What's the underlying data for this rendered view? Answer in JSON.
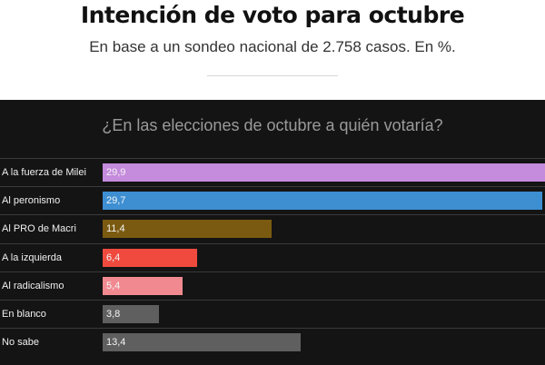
{
  "header": {
    "title": "Intención de voto para octubre",
    "subtitle": "En base a un sondeo nacional de 2.758 casos. En %."
  },
  "chart_data": {
    "type": "bar",
    "orientation": "horizontal",
    "title": "¿En las elecciones de octubre a quién votaría?",
    "categories": [
      "A la fuerza de Milei",
      "Al peronismo",
      "Al PRO de Macri",
      "A la izquierda",
      "Al radicalismo",
      "En blanco",
      "No sabe"
    ],
    "values": [
      29.9,
      29.7,
      11.4,
      6.4,
      5.4,
      3.8,
      13.4
    ],
    "value_labels": [
      "29,9",
      "29,7",
      "11,4",
      "6,4",
      "5,4",
      "3,8",
      "13,4"
    ],
    "colors": [
      "#c58bdc",
      "#3d8fd2",
      "#7a5a10",
      "#f04a3f",
      "#f08a90",
      "#5f5f5f",
      "#5f5f5f"
    ],
    "xlim": [
      0,
      29.9
    ],
    "grid": false,
    "legend": "none"
  }
}
